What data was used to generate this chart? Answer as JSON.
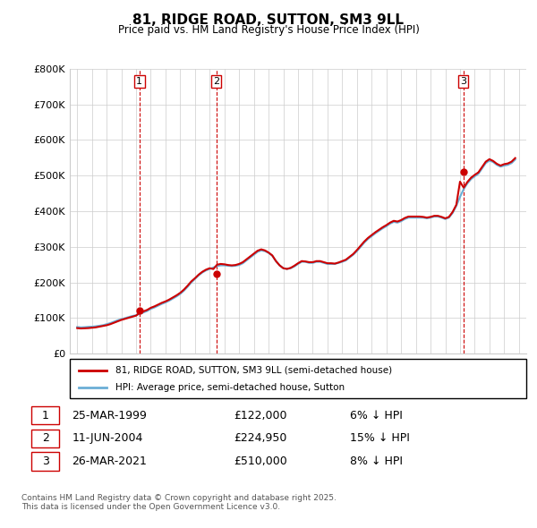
{
  "title": "81, RIDGE ROAD, SUTTON, SM3 9LL",
  "subtitle": "Price paid vs. HM Land Registry's House Price Index (HPI)",
  "ylabel_ticks": [
    "£0",
    "£100K",
    "£200K",
    "£300K",
    "£400K",
    "£500K",
    "£600K",
    "£700K",
    "£800K"
  ],
  "ylim": [
    0,
    800000
  ],
  "yticks": [
    0,
    100000,
    200000,
    300000,
    400000,
    500000,
    600000,
    700000,
    800000
  ],
  "xlim_start": 1994.5,
  "xlim_end": 2025.5,
  "hpi_color": "#6baed6",
  "price_color": "#cc0000",
  "vline_color": "#cc0000",
  "legend_label_red": "81, RIDGE ROAD, SUTTON, SM3 9LL (semi-detached house)",
  "legend_label_blue": "HPI: Average price, semi-detached house, Sutton",
  "sales": [
    {
      "num": 1,
      "date": "25-MAR-1999",
      "price": 122000,
      "pct": "6%",
      "x_year": 1999.23
    },
    {
      "num": 2,
      "date": "11-JUN-2004",
      "price": 224950,
      "pct": "15%",
      "x_year": 2004.44
    },
    {
      "num": 3,
      "date": "26-MAR-2021",
      "price": 510000,
      "pct": "8%",
      "x_year": 2021.23
    }
  ],
  "footnote": "Contains HM Land Registry data © Crown copyright and database right 2025.\nThis data is licensed under the Open Government Licence v3.0.",
  "hpi_data": {
    "years": [
      1995.0,
      1995.25,
      1995.5,
      1995.75,
      1996.0,
      1996.25,
      1996.5,
      1996.75,
      1997.0,
      1997.25,
      1997.5,
      1997.75,
      1998.0,
      1998.25,
      1998.5,
      1998.75,
      1999.0,
      1999.25,
      1999.5,
      1999.75,
      2000.0,
      2000.25,
      2000.5,
      2000.75,
      2001.0,
      2001.25,
      2001.5,
      2001.75,
      2002.0,
      2002.25,
      2002.5,
      2002.75,
      2003.0,
      2003.25,
      2003.5,
      2003.75,
      2004.0,
      2004.25,
      2004.5,
      2004.75,
      2005.0,
      2005.25,
      2005.5,
      2005.75,
      2006.0,
      2006.25,
      2006.5,
      2006.75,
      2007.0,
      2007.25,
      2007.5,
      2007.75,
      2008.0,
      2008.25,
      2008.5,
      2008.75,
      2009.0,
      2009.25,
      2009.5,
      2009.75,
      2010.0,
      2010.25,
      2010.5,
      2010.75,
      2011.0,
      2011.25,
      2011.5,
      2011.75,
      2012.0,
      2012.25,
      2012.5,
      2012.75,
      2013.0,
      2013.25,
      2013.5,
      2013.75,
      2014.0,
      2014.25,
      2014.5,
      2014.75,
      2015.0,
      2015.25,
      2015.5,
      2015.75,
      2016.0,
      2016.25,
      2016.5,
      2016.75,
      2017.0,
      2017.25,
      2017.5,
      2017.75,
      2018.0,
      2018.25,
      2018.5,
      2018.75,
      2019.0,
      2019.25,
      2019.5,
      2019.75,
      2020.0,
      2020.25,
      2020.5,
      2020.75,
      2021.0,
      2021.25,
      2021.5,
      2021.75,
      2022.0,
      2022.25,
      2022.5,
      2022.75,
      2023.0,
      2023.25,
      2023.5,
      2023.75,
      2024.0,
      2024.25,
      2024.5,
      2024.75
    ],
    "values": [
      75000,
      74000,
      74500,
      75500,
      76000,
      77000,
      78500,
      80000,
      83000,
      86000,
      90000,
      94000,
      97000,
      100000,
      103000,
      106000,
      108000,
      112000,
      116000,
      120000,
      126000,
      130000,
      135000,
      140000,
      144000,
      149000,
      155000,
      161000,
      168000,
      177000,
      188000,
      200000,
      210000,
      220000,
      228000,
      234000,
      238000,
      242000,
      246000,
      248000,
      248000,
      247000,
      246000,
      247000,
      249000,
      254000,
      262000,
      270000,
      278000,
      286000,
      290000,
      288000,
      283000,
      275000,
      260000,
      248000,
      240000,
      238000,
      240000,
      245000,
      252000,
      258000,
      258000,
      255000,
      255000,
      258000,
      258000,
      255000,
      252000,
      252000,
      252000,
      255000,
      258000,
      262000,
      270000,
      278000,
      288000,
      300000,
      312000,
      322000,
      330000,
      338000,
      345000,
      352000,
      358000,
      365000,
      370000,
      368000,
      372000,
      378000,
      382000,
      382000,
      382000,
      382000,
      382000,
      380000,
      382000,
      385000,
      385000,
      382000,
      378000,
      382000,
      395000,
      415000,
      440000,
      462000,
      478000,
      490000,
      498000,
      505000,
      520000,
      535000,
      542000,
      538000,
      530000,
      525000,
      528000,
      530000,
      535000,
      545000
    ]
  },
  "price_data": {
    "years": [
      1995.0,
      1995.25,
      1995.5,
      1995.75,
      1996.0,
      1996.25,
      1996.5,
      1996.75,
      1997.0,
      1997.25,
      1997.5,
      1997.75,
      1998.0,
      1998.25,
      1998.5,
      1998.75,
      1999.0,
      1999.25,
      1999.5,
      1999.75,
      2000.0,
      2000.25,
      2000.5,
      2000.75,
      2001.0,
      2001.25,
      2001.5,
      2001.75,
      2002.0,
      2002.25,
      2002.5,
      2002.75,
      2003.0,
      2003.25,
      2003.5,
      2003.75,
      2004.0,
      2004.25,
      2004.5,
      2004.75,
      2005.0,
      2005.25,
      2005.5,
      2005.75,
      2006.0,
      2006.25,
      2006.5,
      2006.75,
      2007.0,
      2007.25,
      2007.5,
      2007.75,
      2008.0,
      2008.25,
      2008.5,
      2008.75,
      2009.0,
      2009.25,
      2009.5,
      2009.75,
      2010.0,
      2010.25,
      2010.5,
      2010.75,
      2011.0,
      2011.25,
      2011.5,
      2011.75,
      2012.0,
      2012.25,
      2012.5,
      2012.75,
      2013.0,
      2013.25,
      2013.5,
      2013.75,
      2014.0,
      2014.25,
      2014.5,
      2014.75,
      2015.0,
      2015.25,
      2015.5,
      2015.75,
      2016.0,
      2016.25,
      2016.5,
      2016.75,
      2017.0,
      2017.25,
      2017.5,
      2017.75,
      2018.0,
      2018.25,
      2018.5,
      2018.75,
      2019.0,
      2019.25,
      2019.5,
      2019.75,
      2020.0,
      2020.25,
      2020.5,
      2020.75,
      2021.0,
      2021.25,
      2021.5,
      2021.75,
      2022.0,
      2022.25,
      2022.5,
      2022.75,
      2023.0,
      2023.25,
      2023.5,
      2023.75,
      2024.0,
      2024.25,
      2024.5,
      2024.75
    ],
    "values": [
      72000,
      71000,
      71500,
      72000,
      73000,
      74000,
      76000,
      78000,
      80000,
      83000,
      87000,
      91000,
      95000,
      98000,
      101000,
      104000,
      107000,
      115400,
      119000,
      123000,
      129000,
      133000,
      138000,
      143000,
      147000,
      152000,
      158000,
      164000,
      171000,
      180000,
      191000,
      203000,
      212000,
      222000,
      230000,
      236000,
      240000,
      237700,
      250000,
      252000,
      251000,
      249000,
      248000,
      249000,
      252000,
      257000,
      265000,
      273000,
      281000,
      289000,
      293000,
      290000,
      284000,
      276000,
      260000,
      248000,
      240000,
      238000,
      241000,
      247000,
      254000,
      260000,
      259000,
      257000,
      257000,
      260000,
      260000,
      257000,
      254000,
      254000,
      253000,
      256000,
      260000,
      264000,
      272000,
      280000,
      291000,
      303000,
      315000,
      325000,
      333000,
      341000,
      348000,
      355000,
      361000,
      368000,
      373000,
      371000,
      375000,
      381000,
      385000,
      385000,
      385000,
      385000,
      384000,
      382000,
      384000,
      387000,
      387000,
      384000,
      380000,
      384000,
      398000,
      418000,
      482900,
      466000,
      482000,
      494000,
      502000,
      509000,
      524000,
      539000,
      546000,
      541000,
      533000,
      528000,
      532000,
      534000,
      539000,
      549000
    ]
  }
}
